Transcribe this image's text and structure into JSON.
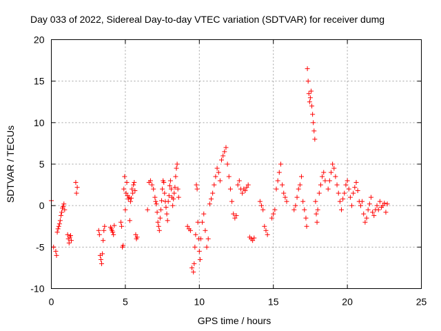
{
  "chart_data": {
    "type": "scatter",
    "title": "Day 033 of 2022, Sidereal Day-to-day VTEC variation (SDTVAR) for receiver dumg",
    "xlabel": "GPS time / hours",
    "ylabel": "SDTVAR / TECUs",
    "xlim": [
      0,
      25
    ],
    "ylim": [
      -10,
      20
    ],
    "xticks": [
      "0",
      "5",
      "10",
      "15",
      "20",
      "25"
    ],
    "yticks": [
      "-10",
      "-5",
      "0",
      "5",
      "10",
      "15",
      "20"
    ],
    "grid": true,
    "marker": "+",
    "color": "#ff0000",
    "series": [
      {
        "name": "SDTVAR",
        "x": [
          0.0,
          0.15,
          0.3,
          0.35,
          0.4,
          0.45,
          0.5,
          0.55,
          0.6,
          0.65,
          0.7,
          0.75,
          0.8,
          0.85,
          0.9,
          1.1,
          1.15,
          1.2,
          1.25,
          1.3,
          1.35,
          1.65,
          1.7,
          1.75,
          3.2,
          3.25,
          3.3,
          3.35,
          3.4,
          3.45,
          3.5,
          3.55,
          3.6,
          4.0,
          4.05,
          4.1,
          4.15,
          4.2,
          4.25,
          4.7,
          4.75,
          4.8,
          4.85,
          4.9,
          4.95,
          5.0,
          5.05,
          5.1,
          5.15,
          5.2,
          5.25,
          5.3,
          5.35,
          5.4,
          5.45,
          5.5,
          5.55,
          5.6,
          5.65,
          5.7,
          5.75,
          5.8,
          6.5,
          6.6,
          6.7,
          6.8,
          6.9,
          7.0,
          7.05,
          7.1,
          7.15,
          7.2,
          7.25,
          7.3,
          7.35,
          7.4,
          7.45,
          7.5,
          7.55,
          7.6,
          7.65,
          7.7,
          7.75,
          7.8,
          7.85,
          7.9,
          7.95,
          8.0,
          8.05,
          8.1,
          8.15,
          8.2,
          8.25,
          8.3,
          8.35,
          8.4,
          8.45,
          8.5,
          8.55,
          8.6,
          9.2,
          9.3,
          9.4,
          9.5,
          9.6,
          9.65,
          9.7,
          9.75,
          9.8,
          9.85,
          9.9,
          9.95,
          10.0,
          10.05,
          10.1,
          10.2,
          10.3,
          10.4,
          10.5,
          10.6,
          10.7,
          10.8,
          10.9,
          11.0,
          11.1,
          11.2,
          11.3,
          11.4,
          11.5,
          11.6,
          11.7,
          11.8,
          11.9,
          12.0,
          12.1,
          12.2,
          12.3,
          12.4,
          12.5,
          12.6,
          12.7,
          12.8,
          12.9,
          13.0,
          13.1,
          13.2,
          13.3,
          13.4,
          13.5,
          13.6,
          13.7,
          14.1,
          14.2,
          14.3,
          14.4,
          14.5,
          14.6,
          14.9,
          15.0,
          15.1,
          15.2,
          15.3,
          15.4,
          15.5,
          15.6,
          15.7,
          15.8,
          15.9,
          16.4,
          16.5,
          16.6,
          16.7,
          16.8,
          16.9,
          17.0,
          17.1,
          17.2,
          17.25,
          17.3,
          17.35,
          17.4,
          17.45,
          17.5,
          17.55,
          17.6,
          17.65,
          17.7,
          17.75,
          17.8,
          17.85,
          17.9,
          17.95,
          18.0,
          18.1,
          18.2,
          18.3,
          18.4,
          18.5,
          18.7,
          18.8,
          18.9,
          19.0,
          19.1,
          19.2,
          19.3,
          19.4,
          19.5,
          19.6,
          19.7,
          19.8,
          19.9,
          20.0,
          20.1,
          20.2,
          20.3,
          20.4,
          20.5,
          20.6,
          20.7,
          20.8,
          20.9,
          21.0,
          21.1,
          21.2,
          21.3,
          21.4,
          21.5,
          21.6,
          21.7,
          21.8,
          21.9,
          22.0,
          22.1,
          22.2,
          22.3,
          22.4,
          22.5,
          22.6,
          22.7
        ],
        "y": [
          0.6,
          -5.0,
          -5.5,
          -6.0,
          -3.2,
          -2.8,
          -2.5,
          -2.2,
          -1.8,
          -1.2,
          -0.8,
          -0.3,
          -0.1,
          0.2,
          -0.5,
          -3.5,
          -4.0,
          -4.5,
          -3.8,
          -3.6,
          -4.2,
          2.8,
          1.5,
          2.2,
          -3.0,
          -3.5,
          -6.0,
          -6.5,
          -7.0,
          -5.8,
          -4.2,
          -3.0,
          -2.5,
          -2.6,
          -2.8,
          -3.0,
          -3.2,
          -3.5,
          -2.4,
          -2.0,
          -2.5,
          -5.0,
          -4.8,
          2.0,
          3.5,
          -0.5,
          1.5,
          2.8,
          1.2,
          0.8,
          1.0,
          -1.8,
          0.5,
          0.9,
          2.0,
          1.5,
          2.5,
          2.8,
          1.8,
          -3.5,
          -4.0,
          -3.8,
          -0.5,
          2.8,
          3.0,
          2.5,
          2.0,
          1.0,
          0.5,
          0.2,
          -0.8,
          -2.0,
          -2.5,
          -3.0,
          -1.5,
          -0.5,
          0.6,
          2.0,
          3.0,
          2.8,
          1.5,
          0.5,
          -0.2,
          -1.0,
          -1.8,
          0.5,
          1.2,
          2.4,
          3.0,
          2.0,
          1.0,
          0.0,
          0.8,
          1.5,
          2.2,
          3.5,
          4.5,
          5.0,
          2.0,
          1.0,
          -2.5,
          -2.8,
          -3.0,
          -7.5,
          -8.0,
          -7.0,
          -5.0,
          -3.5,
          2.5,
          2.0,
          -2.0,
          -4.0,
          -5.5,
          -6.5,
          -4.0,
          -2.0,
          -1.0,
          -3.0,
          -5.0,
          -4.0,
          0.2,
          0.8,
          1.5,
          2.5,
          3.5,
          4.5,
          4.0,
          3.0,
          5.5,
          6.0,
          6.5,
          7.0,
          5.0,
          3.5,
          2.0,
          0.5,
          -1.0,
          -1.5,
          -1.2,
          2.5,
          3.0,
          2.0,
          1.5,
          2.0,
          1.8,
          2.2,
          2.5,
          -3.8,
          -4.0,
          -4.2,
          -3.9,
          0.5,
          0.0,
          -0.5,
          -2.5,
          -3.0,
          -3.5,
          -1.5,
          -1.0,
          -0.5,
          2.0,
          3.0,
          4.0,
          5.0,
          2.5,
          1.5,
          1.0,
          0.5,
          -0.5,
          0.0,
          1.0,
          2.0,
          2.5,
          3.5,
          0.5,
          -0.5,
          -1.5,
          -2.5,
          16.5,
          15.0,
          13.5,
          12.5,
          13.0,
          13.8,
          12.0,
          11.0,
          10.0,
          9.0,
          8.0,
          0.5,
          -1.0,
          -2.0,
          -0.5,
          1.5,
          2.5,
          3.5,
          4.0,
          3.0,
          2.0,
          3.0,
          4.0,
          5.0,
          4.5,
          3.5,
          2.5,
          1.5,
          0.5,
          -0.5,
          0.8,
          1.5,
          2.5,
          3.0,
          2.0,
          1.0,
          0.0,
          1.5,
          2.2,
          2.8,
          1.8,
          0.5,
          0.0,
          0.5,
          -1.0,
          -2.0,
          -1.5,
          -0.5,
          0.2,
          1.0,
          -0.8,
          -1.2,
          -0.5,
          0.0,
          -0.5,
          0.5,
          -0.2,
          0.0,
          0.3,
          -0.8,
          0.2
        ]
      }
    ]
  }
}
